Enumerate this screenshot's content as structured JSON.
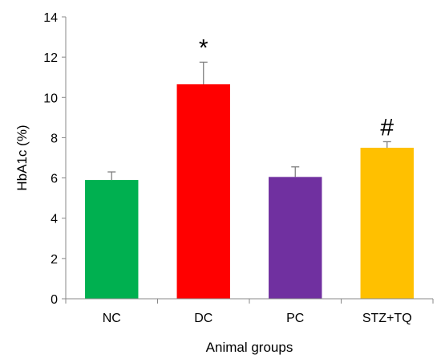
{
  "chart_data": {
    "type": "bar",
    "title": "",
    "xlabel": "Animal groups",
    "ylabel": "HbA1c (%)",
    "ylim": [
      0,
      14
    ],
    "yticks": [
      0,
      2,
      4,
      6,
      8,
      10,
      12,
      14
    ],
    "categories": [
      "NC",
      "DC",
      "PC",
      "STZ+TQ"
    ],
    "values": [
      5.9,
      10.65,
      6.05,
      7.5
    ],
    "errors": [
      0.4,
      1.1,
      0.5,
      0.3
    ],
    "annotations": [
      "",
      "*",
      "",
      "#"
    ],
    "colors": [
      "#00b050",
      "#ff0000",
      "#7030a0",
      "#ffc000"
    ],
    "error_bar_color": "#7f7f7f",
    "grid": false,
    "legend": "none"
  }
}
